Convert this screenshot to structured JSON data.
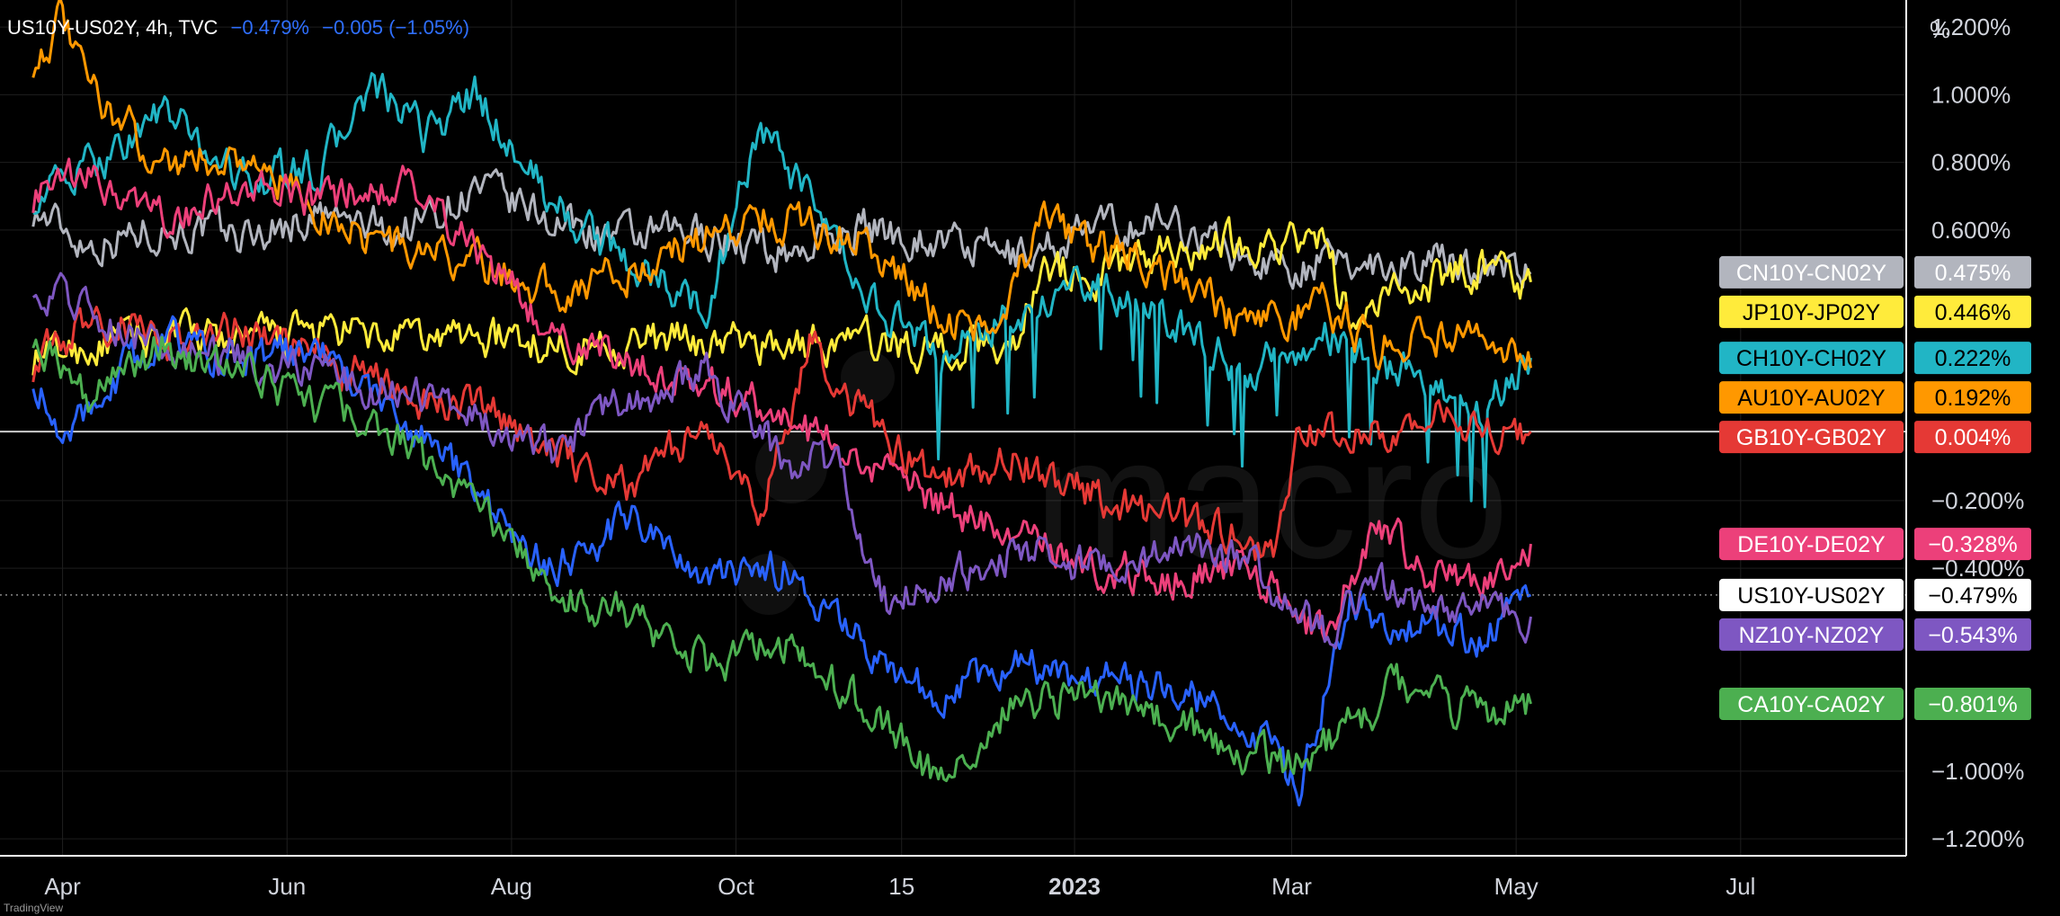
{
  "header": {
    "symbol": "US10Y-US02Y, 4h, TVC",
    "last": "−0.479%",
    "change": "−0.005 (−1.05%)"
  },
  "watermark": "macro",
  "branding": "TradingView",
  "colors": {
    "background": "#000000",
    "axis_text": "#d1d4dc",
    "grid": "#1e1e1e"
  },
  "chart_data": {
    "type": "line",
    "title": "US10Y-US02Y, 4h, TVC",
    "ylabel": "%",
    "ylim": [
      -1.25,
      1.28
    ],
    "yticks": [
      {
        "v": 1.2,
        "label": "1.200%"
      },
      {
        "v": 1.0,
        "label": "1.000%"
      },
      {
        "v": 0.8,
        "label": "0.800%"
      },
      {
        "v": 0.6,
        "label": "0.600%"
      },
      {
        "v": -0.2,
        "label": "−0.200%"
      },
      {
        "v": -0.4,
        "label": "−0.400%"
      },
      {
        "v": -1.0,
        "label": "−1.000%"
      },
      {
        "v": -1.2,
        "label": "−1.200%"
      }
    ],
    "xticks": [
      {
        "x": "2022-04",
        "label": "Apr",
        "bold": false
      },
      {
        "x": "2022-06",
        "label": "Jun",
        "bold": false
      },
      {
        "x": "2022-08",
        "label": "Aug",
        "bold": false
      },
      {
        "x": "2022-10",
        "label": "Oct",
        "bold": false
      },
      {
        "x": "2022-11-15",
        "label": "15",
        "bold": false
      },
      {
        "x": "2023-01",
        "label": "2023",
        "bold": true
      },
      {
        "x": "2023-03",
        "label": "Mar",
        "bold": false
      },
      {
        "x": "2023-05",
        "label": "May",
        "bold": false
      },
      {
        "x": "2023-07",
        "label": "Jul",
        "bold": false
      }
    ],
    "grid": true,
    "reference_line": 0.004,
    "series": [
      {
        "name": "CN10Y-CN02Y",
        "color": "#b2b5be",
        "last": "0.475%",
        "label_text": "#ffffff",
        "points": [
          [
            "2022-03-24",
            0.66
          ],
          [
            "2022-04-08",
            0.56
          ],
          [
            "2022-04-28",
            0.61
          ],
          [
            "2022-05-20",
            0.58
          ],
          [
            "2022-06-10",
            0.64
          ],
          [
            "2022-07-01",
            0.59
          ],
          [
            "2022-07-22",
            0.72
          ],
          [
            "2022-08-12",
            0.63
          ],
          [
            "2022-09-02",
            0.57
          ],
          [
            "2022-09-23",
            0.59
          ],
          [
            "2022-10-14",
            0.53
          ],
          [
            "2022-11-04",
            0.61
          ],
          [
            "2022-11-25",
            0.57
          ],
          [
            "2022-12-16",
            0.52
          ],
          [
            "2023-01-06",
            0.6
          ],
          [
            "2023-01-27",
            0.63
          ],
          [
            "2023-02-17",
            0.51
          ],
          [
            "2023-03-10",
            0.5
          ],
          [
            "2023-03-31",
            0.51
          ],
          [
            "2023-04-21",
            0.5
          ],
          [
            "2023-05-05",
            0.475
          ]
        ]
      },
      {
        "name": "JP10Y-JP02Y",
        "color": "#ffeb3b",
        "last": "0.446%",
        "label_text": "#000000",
        "points": [
          [
            "2022-03-24",
            0.22
          ],
          [
            "2022-04-08",
            0.25
          ],
          [
            "2022-04-28",
            0.29
          ],
          [
            "2022-05-20",
            0.27
          ],
          [
            "2022-06-10",
            0.3
          ],
          [
            "2022-07-01",
            0.27
          ],
          [
            "2022-07-22",
            0.29
          ],
          [
            "2022-08-12",
            0.26
          ],
          [
            "2022-09-02",
            0.27
          ],
          [
            "2022-09-23",
            0.27
          ],
          [
            "2022-10-14",
            0.26
          ],
          [
            "2022-11-04",
            0.27
          ],
          [
            "2022-11-25",
            0.25
          ],
          [
            "2022-12-16",
            0.27
          ],
          [
            "2022-12-23",
            0.5
          ],
          [
            "2023-01-06",
            0.46
          ],
          [
            "2023-01-27",
            0.55
          ],
          [
            "2023-02-17",
            0.57
          ],
          [
            "2023-03-10",
            0.56
          ],
          [
            "2023-03-17",
            0.32
          ],
          [
            "2023-03-31",
            0.42
          ],
          [
            "2023-04-21",
            0.5
          ],
          [
            "2023-05-05",
            0.446
          ]
        ]
      },
      {
        "name": "CH10Y-CH02Y",
        "color": "#21b5c5",
        "last": "0.222%",
        "label_text": "#000000",
        "points": [
          [
            "2022-03-24",
            0.7
          ],
          [
            "2022-04-08",
            0.78
          ],
          [
            "2022-04-28",
            0.95
          ],
          [
            "2022-05-20",
            0.75
          ],
          [
            "2022-06-10",
            0.78
          ],
          [
            "2022-06-24",
            1.02
          ],
          [
            "2022-07-08",
            0.88
          ],
          [
            "2022-07-22",
            1.0
          ],
          [
            "2022-08-12",
            0.68
          ],
          [
            "2022-09-02",
            0.5
          ],
          [
            "2022-09-23",
            0.36
          ],
          [
            "2022-10-07",
            0.9
          ],
          [
            "2022-10-21",
            0.68
          ],
          [
            "2022-11-04",
            0.42
          ],
          [
            "2022-11-25",
            0.22
          ],
          [
            "2022-12-16",
            0.36
          ],
          [
            "2023-01-06",
            0.45
          ],
          [
            "2023-01-27",
            0.33
          ],
          [
            "2023-02-17",
            0.18
          ],
          [
            "2023-03-10",
            0.3
          ],
          [
            "2023-03-24",
            0.2
          ],
          [
            "2023-04-07",
            0.18
          ],
          [
            "2023-04-21",
            0.05
          ],
          [
            "2023-05-05",
            0.222
          ]
        ]
      },
      {
        "name": "AU10Y-AU02Y",
        "color": "#ff9800",
        "last": "0.192%",
        "label_text": "#000000",
        "points": [
          [
            "2022-03-24",
            1.1
          ],
          [
            "2022-04-01",
            1.22
          ],
          [
            "2022-04-08",
            1.02
          ],
          [
            "2022-04-28",
            0.8
          ],
          [
            "2022-05-20",
            0.82
          ],
          [
            "2022-06-10",
            0.65
          ],
          [
            "2022-07-01",
            0.55
          ],
          [
            "2022-07-22",
            0.5
          ],
          [
            "2022-08-12",
            0.42
          ],
          [
            "2022-09-02",
            0.48
          ],
          [
            "2022-09-23",
            0.58
          ],
          [
            "2022-10-07",
            0.65
          ],
          [
            "2022-10-21",
            0.62
          ],
          [
            "2022-11-04",
            0.58
          ],
          [
            "2022-11-25",
            0.35
          ],
          [
            "2022-12-09",
            0.3
          ],
          [
            "2022-12-23",
            0.62
          ],
          [
            "2023-01-06",
            0.55
          ],
          [
            "2023-01-27",
            0.48
          ],
          [
            "2023-02-17",
            0.3
          ],
          [
            "2023-03-10",
            0.38
          ],
          [
            "2023-03-24",
            0.25
          ],
          [
            "2023-04-07",
            0.3
          ],
          [
            "2023-04-21",
            0.26
          ],
          [
            "2023-05-05",
            0.192
          ]
        ]
      },
      {
        "name": "GB10Y-GB02Y",
        "color": "#e53935",
        "last": "0.004%",
        "label_text": "#ffffff",
        "points": [
          [
            "2022-03-24",
            0.2
          ],
          [
            "2022-04-08",
            0.34
          ],
          [
            "2022-04-28",
            0.28
          ],
          [
            "2022-05-20",
            0.3
          ],
          [
            "2022-06-10",
            0.22
          ],
          [
            "2022-07-01",
            0.12
          ],
          [
            "2022-07-22",
            0.08
          ],
          [
            "2022-08-12",
            -0.05
          ],
          [
            "2022-09-02",
            -0.15
          ],
          [
            "2022-09-23",
            0.02
          ],
          [
            "2022-10-07",
            -0.25
          ],
          [
            "2022-10-21",
            0.28
          ],
          [
            "2022-11-04",
            0.05
          ],
          [
            "2022-11-25",
            -0.15
          ],
          [
            "2022-12-16",
            -0.08
          ],
          [
            "2023-01-06",
            -0.18
          ],
          [
            "2023-01-27",
            -0.25
          ],
          [
            "2023-02-17",
            -0.3
          ],
          [
            "2023-02-24",
            -0.38
          ],
          [
            "2023-03-03",
            0.02
          ],
          [
            "2023-03-17",
            -0.02
          ],
          [
            "2023-04-07",
            0.05
          ],
          [
            "2023-04-21",
            0.0
          ],
          [
            "2023-05-05",
            0.004
          ]
        ]
      },
      {
        "name": "DE10Y-DE02Y",
        "color": "#ec407a",
        "last": "−0.328%",
        "label_text": "#ffffff",
        "points": [
          [
            "2022-03-24",
            0.7
          ],
          [
            "2022-04-08",
            0.75
          ],
          [
            "2022-04-28",
            0.62
          ],
          [
            "2022-05-20",
            0.72
          ],
          [
            "2022-06-10",
            0.68
          ],
          [
            "2022-07-01",
            0.75
          ],
          [
            "2022-07-22",
            0.55
          ],
          [
            "2022-08-12",
            0.3
          ],
          [
            "2022-09-02",
            0.22
          ],
          [
            "2022-09-23",
            0.15
          ],
          [
            "2022-10-14",
            0.05
          ],
          [
            "2022-11-04",
            -0.1
          ],
          [
            "2022-11-25",
            -0.2
          ],
          [
            "2022-12-16",
            -0.3
          ],
          [
            "2023-01-06",
            -0.4
          ],
          [
            "2023-01-27",
            -0.42
          ],
          [
            "2023-02-17",
            -0.4
          ],
          [
            "2023-03-10",
            -0.62
          ],
          [
            "2023-03-24",
            -0.25
          ],
          [
            "2023-04-07",
            -0.42
          ],
          [
            "2023-04-21",
            -0.45
          ],
          [
            "2023-05-05",
            -0.328
          ]
        ]
      },
      {
        "name": "US10Y-US02Y",
        "color": "#2962ff",
        "last": "−0.479%",
        "label_text": "#000000",
        "label_bg": "#ffffff",
        "points": [
          [
            "2022-03-24",
            0.18
          ],
          [
            "2022-04-01",
            -0.05
          ],
          [
            "2022-04-08",
            0.1
          ],
          [
            "2022-04-28",
            0.28
          ],
          [
            "2022-05-20",
            0.22
          ],
          [
            "2022-06-10",
            0.24
          ],
          [
            "2022-07-01",
            0.05
          ],
          [
            "2022-07-22",
            -0.15
          ],
          [
            "2022-08-12",
            -0.4
          ],
          [
            "2022-09-02",
            -0.25
          ],
          [
            "2022-09-23",
            -0.45
          ],
          [
            "2022-10-14",
            -0.4
          ],
          [
            "2022-11-04",
            -0.62
          ],
          [
            "2022-11-25",
            -0.78
          ],
          [
            "2022-12-16",
            -0.68
          ],
          [
            "2023-01-06",
            -0.72
          ],
          [
            "2023-01-27",
            -0.75
          ],
          [
            "2023-02-17",
            -0.85
          ],
          [
            "2023-03-03",
            -1.07
          ],
          [
            "2023-03-17",
            -0.5
          ],
          [
            "2023-04-07",
            -0.58
          ],
          [
            "2023-04-21",
            -0.62
          ],
          [
            "2023-05-05",
            -0.479
          ]
        ]
      },
      {
        "name": "NZ10Y-NZ02Y",
        "color": "#7e57c2",
        "last": "−0.543%",
        "label_text": "#ffffff",
        "points": [
          [
            "2022-03-24",
            0.45
          ],
          [
            "2022-04-08",
            0.38
          ],
          [
            "2022-04-28",
            0.25
          ],
          [
            "2022-05-20",
            0.22
          ],
          [
            "2022-06-10",
            0.18
          ],
          [
            "2022-07-01",
            0.12
          ],
          [
            "2022-07-22",
            0.08
          ],
          [
            "2022-08-12",
            -0.05
          ],
          [
            "2022-09-02",
            0.1
          ],
          [
            "2022-09-23",
            0.18
          ],
          [
            "2022-10-14",
            -0.08
          ],
          [
            "2022-10-28",
            -0.1
          ],
          [
            "2022-11-11",
            -0.5
          ],
          [
            "2022-11-25",
            -0.45
          ],
          [
            "2022-12-16",
            -0.35
          ],
          [
            "2023-01-06",
            -0.4
          ],
          [
            "2023-01-27",
            -0.35
          ],
          [
            "2023-02-17",
            -0.38
          ],
          [
            "2023-03-10",
            -0.6
          ],
          [
            "2023-03-24",
            -0.45
          ],
          [
            "2023-04-07",
            -0.55
          ],
          [
            "2023-04-21",
            -0.52
          ],
          [
            "2023-05-05",
            -0.543
          ]
        ]
      },
      {
        "name": "CA10Y-CA02Y",
        "color": "#4caf50",
        "last": "−0.801%",
        "label_text": "#ffffff",
        "points": [
          [
            "2022-03-24",
            0.3
          ],
          [
            "2022-04-08",
            0.12
          ],
          [
            "2022-04-28",
            0.25
          ],
          [
            "2022-05-20",
            0.18
          ],
          [
            "2022-06-10",
            0.08
          ],
          [
            "2022-07-01",
            -0.02
          ],
          [
            "2022-07-22",
            -0.2
          ],
          [
            "2022-08-12",
            -0.45
          ],
          [
            "2022-09-02",
            -0.55
          ],
          [
            "2022-09-23",
            -0.68
          ],
          [
            "2022-10-14",
            -0.62
          ],
          [
            "2022-11-04",
            -0.8
          ],
          [
            "2022-11-25",
            -1.02
          ],
          [
            "2022-12-16",
            -0.8
          ],
          [
            "2023-01-06",
            -0.78
          ],
          [
            "2023-01-27",
            -0.85
          ],
          [
            "2023-02-17",
            -0.95
          ],
          [
            "2023-03-03",
            -0.98
          ],
          [
            "2023-03-17",
            -0.85
          ],
          [
            "2023-03-31",
            -0.75
          ],
          [
            "2023-04-14",
            -0.82
          ],
          [
            "2023-05-05",
            -0.801
          ]
        ]
      }
    ]
  }
}
